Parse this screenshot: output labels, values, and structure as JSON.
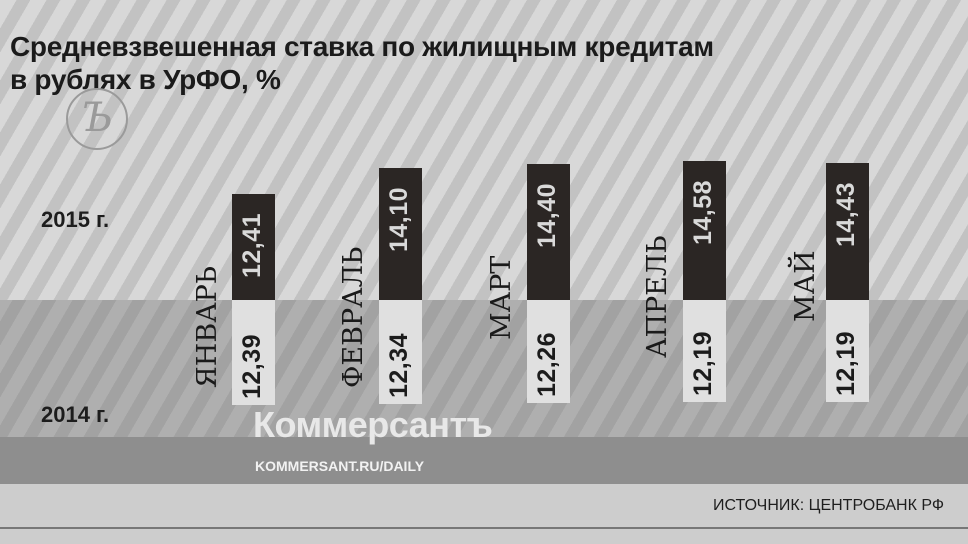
{
  "chart_data": {
    "type": "bar",
    "title": "Средневзвешенная ставка по жилищным кредитам в рублях в УрФО, %",
    "title_lines": [
      "Средневзвешенная ставка по жилищным кредитам",
      "в рублях в УрФО, %"
    ],
    "categories": [
      "ЯНВАРЬ",
      "ФЕВРАЛЬ",
      "МАРТ",
      "АПРЕЛЬ",
      "МАЙ"
    ],
    "series": [
      {
        "name": "2015 г.",
        "values": [
          "12,41",
          "14,10",
          "14,40",
          "14,58",
          "14,43"
        ],
        "numeric": [
          12.41,
          14.1,
          14.4,
          14.58,
          14.43
        ],
        "color": "#2b2624"
      },
      {
        "name": "2014 г.",
        "values": [
          "12,39",
          "12,34",
          "12,26",
          "12,19",
          "12,19"
        ],
        "numeric": [
          12.39,
          12.34,
          12.26,
          12.19,
          12.19
        ],
        "color": "#e0e0e0"
      }
    ],
    "legend": "left"
  },
  "brand": {
    "name": "Коммерсантъ",
    "url": "KOMMERSANT.RU/DAILY",
    "seal": "Ъ"
  },
  "source": "ИСТОЧНИК: ЦЕНТРОБАНК РФ",
  "colors": {
    "bar_2015": "#2b2624",
    "bar_2014": "#e0e0e0",
    "background": "#d2d2d2"
  }
}
